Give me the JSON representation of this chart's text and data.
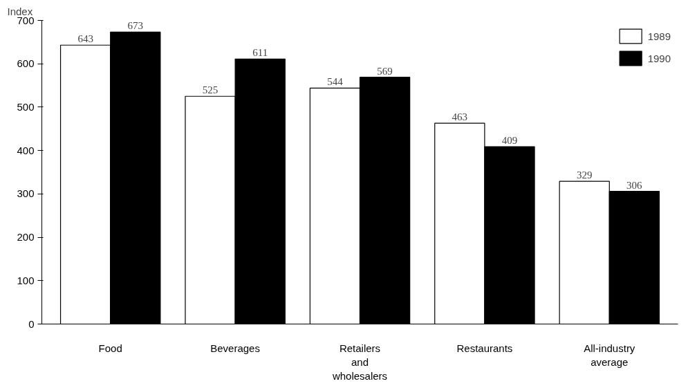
{
  "chart_data": {
    "type": "bar",
    "ylabel": "Index",
    "categories": [
      "Food",
      "Beverages",
      "Retailers\nand\nwholesalers",
      "Restaurants",
      "All-industry\naverage"
    ],
    "series": [
      {
        "name": "1989",
        "color": "#ffffff",
        "values": [
          643,
          525,
          544,
          463,
          329
        ]
      },
      {
        "name": "1990",
        "color": "#000000",
        "values": [
          673,
          611,
          569,
          409,
          306
        ]
      }
    ],
    "ylim": [
      0,
      700
    ],
    "yticks": [
      0,
      100,
      200,
      300,
      400,
      500,
      600,
      700
    ],
    "data_labels": true,
    "legend": "top right",
    "grid": false
  }
}
